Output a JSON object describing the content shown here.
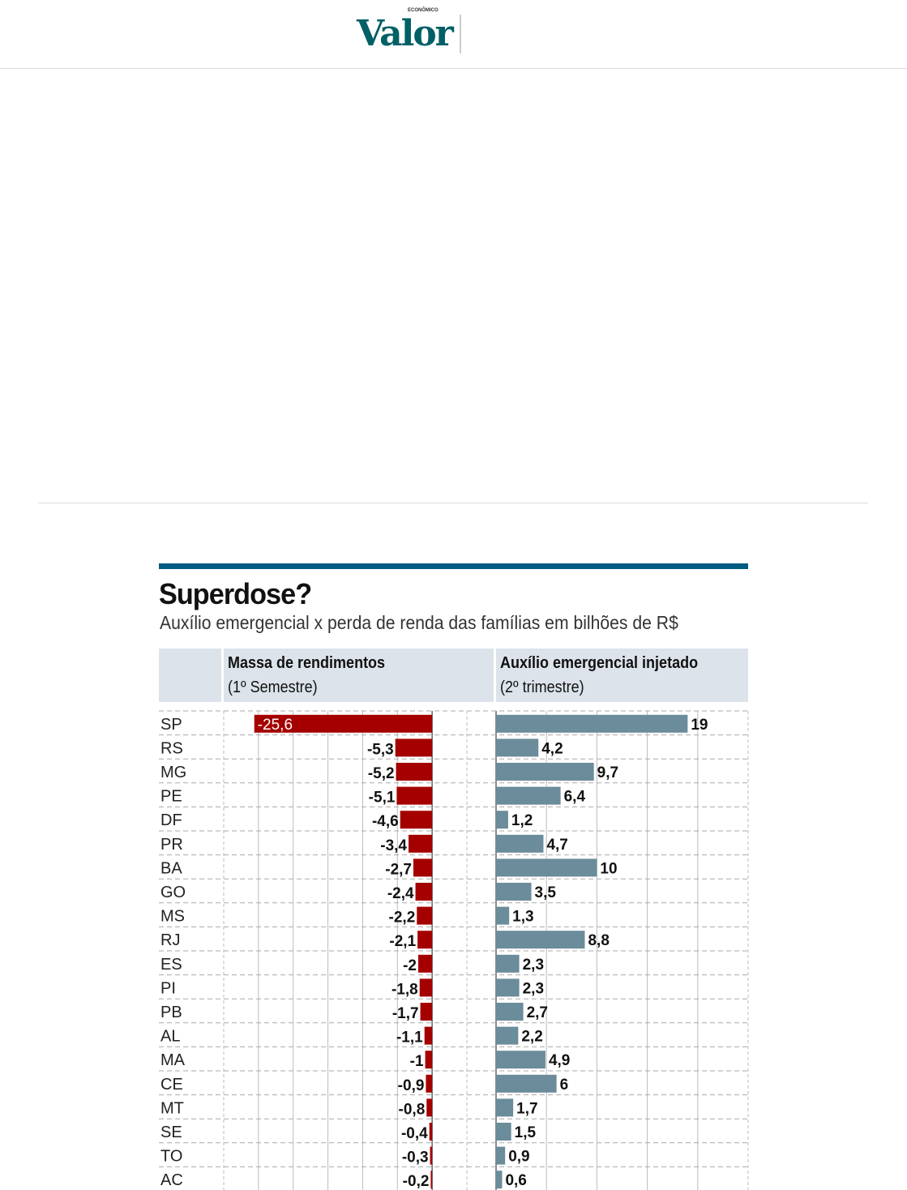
{
  "header": {
    "logo": "Valor",
    "logo_sub": "ECONÔMICO"
  },
  "chart_data": {
    "type": "bar",
    "title": "Superdose?",
    "subtitle": "Auxílio emergencial x perda de renda das famílias em bilhões de R$",
    "categories": [
      "SP",
      "RS",
      "MG",
      "PE",
      "DF",
      "PR",
      "BA",
      "GO",
      "MS",
      "RJ",
      "ES",
      "PI",
      "PB",
      "AL",
      "MA",
      "CE",
      "MT",
      "SE",
      "TO",
      "AC"
    ],
    "series": [
      {
        "name": "Massa de rendimentos",
        "sub": "(1º Semestre)",
        "color": "#a50000",
        "values": [
          -25.6,
          -5.3,
          -5.2,
          -5.1,
          -4.6,
          -3.4,
          -2.7,
          -2.4,
          -2.2,
          -2.1,
          -2,
          -1.8,
          -1.7,
          -1.1,
          -1,
          -0.9,
          -0.8,
          -0.4,
          -0.3,
          -0.2
        ],
        "labels": [
          "-25,6",
          "-5,3",
          "-5,2",
          "-5,1",
          "-4,6",
          "-3,4",
          "-2,7",
          "-2,4",
          "-2,2",
          "-2,1",
          "-2",
          "-1,8",
          "-1,7",
          "-1,1",
          "-1",
          "-0,9",
          "-0,8",
          "-0,4",
          "-0,3",
          "-0,2"
        ],
        "xlim": [
          -30,
          5
        ]
      },
      {
        "name": "Auxílio emergencial injetado",
        "sub": "(2º trimestre)",
        "color": "#6b8c9a",
        "values": [
          19,
          4.2,
          9.7,
          6.4,
          1.2,
          4.7,
          10,
          3.5,
          1.3,
          8.8,
          2.3,
          2.3,
          2.7,
          2.2,
          4.9,
          6,
          1.7,
          1.5,
          0.9,
          0.6
        ],
        "labels": [
          "19",
          "4,2",
          "9,7",
          "6,4",
          "1,2",
          "4,7",
          "10",
          "3,5",
          "1,3",
          "8,8",
          "2,3",
          "2,3",
          "2,7",
          "2,2",
          "4,9",
          "6",
          "1,7",
          "1,5",
          "0,9",
          "0,6"
        ],
        "xlim": [
          0,
          25
        ]
      }
    ],
    "grid": true
  }
}
